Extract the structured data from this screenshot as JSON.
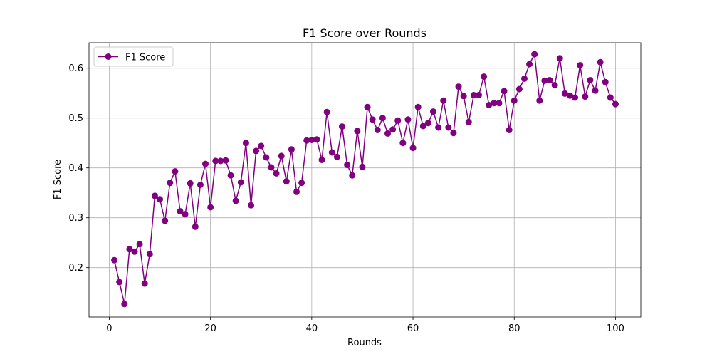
{
  "colors": {
    "series": "#800080",
    "grid": "#b0b0b0",
    "axis": "#000000",
    "background": "#ffffff"
  },
  "chart_data": {
    "type": "line",
    "title": "F1 Score over Rounds",
    "xlabel": "Rounds",
    "ylabel": "F1 Score",
    "xlim": [
      -4,
      105
    ],
    "ylim": [
      0.101,
      0.651
    ],
    "xticks": [
      0,
      20,
      40,
      60,
      80,
      100
    ],
    "yticks": [
      0.2,
      0.3,
      0.4,
      0.5,
      0.6
    ],
    "grid": true,
    "legend": "top-left",
    "marker": "circle",
    "series": [
      {
        "name": "F1 Score",
        "x": [
          1,
          2,
          3,
          4,
          5,
          6,
          7,
          8,
          9,
          10,
          11,
          12,
          13,
          14,
          15,
          16,
          17,
          18,
          19,
          20,
          21,
          22,
          23,
          24,
          25,
          26,
          27,
          28,
          29,
          30,
          31,
          32,
          33,
          34,
          35,
          36,
          37,
          38,
          39,
          40,
          41,
          42,
          43,
          44,
          45,
          46,
          47,
          48,
          49,
          50,
          51,
          52,
          53,
          54,
          55,
          56,
          57,
          58,
          59,
          60,
          61,
          62,
          63,
          64,
          65,
          66,
          67,
          68,
          69,
          70,
          71,
          72,
          73,
          74,
          75,
          76,
          77,
          78,
          79,
          80,
          81,
          82,
          83,
          84,
          85,
          86,
          87,
          88,
          89,
          90,
          91,
          92,
          93,
          94,
          95,
          96,
          97,
          98,
          99,
          100
        ],
        "values": [
          0.215,
          0.171,
          0.127,
          0.237,
          0.232,
          0.247,
          0.168,
          0.227,
          0.344,
          0.337,
          0.294,
          0.37,
          0.393,
          0.313,
          0.307,
          0.369,
          0.282,
          0.366,
          0.408,
          0.321,
          0.414,
          0.414,
          0.415,
          0.385,
          0.334,
          0.371,
          0.45,
          0.325,
          0.434,
          0.444,
          0.421,
          0.401,
          0.389,
          0.424,
          0.373,
          0.437,
          0.352,
          0.37,
          0.455,
          0.456,
          0.457,
          0.416,
          0.512,
          0.431,
          0.422,
          0.483,
          0.406,
          0.385,
          0.474,
          0.402,
          0.522,
          0.497,
          0.476,
          0.5,
          0.469,
          0.477,
          0.495,
          0.45,
          0.497,
          0.44,
          0.522,
          0.484,
          0.49,
          0.513,
          0.481,
          0.535,
          0.481,
          0.47,
          0.563,
          0.544,
          0.492,
          0.546,
          0.546,
          0.583,
          0.526,
          0.53,
          0.53,
          0.554,
          0.476,
          0.535,
          0.558,
          0.579,
          0.608,
          0.628,
          0.535,
          0.575,
          0.576,
          0.566,
          0.62,
          0.549,
          0.545,
          0.541,
          0.606,
          0.543,
          0.576,
          0.555,
          0.612,
          0.572,
          0.541,
          0.528
        ]
      }
    ]
  }
}
